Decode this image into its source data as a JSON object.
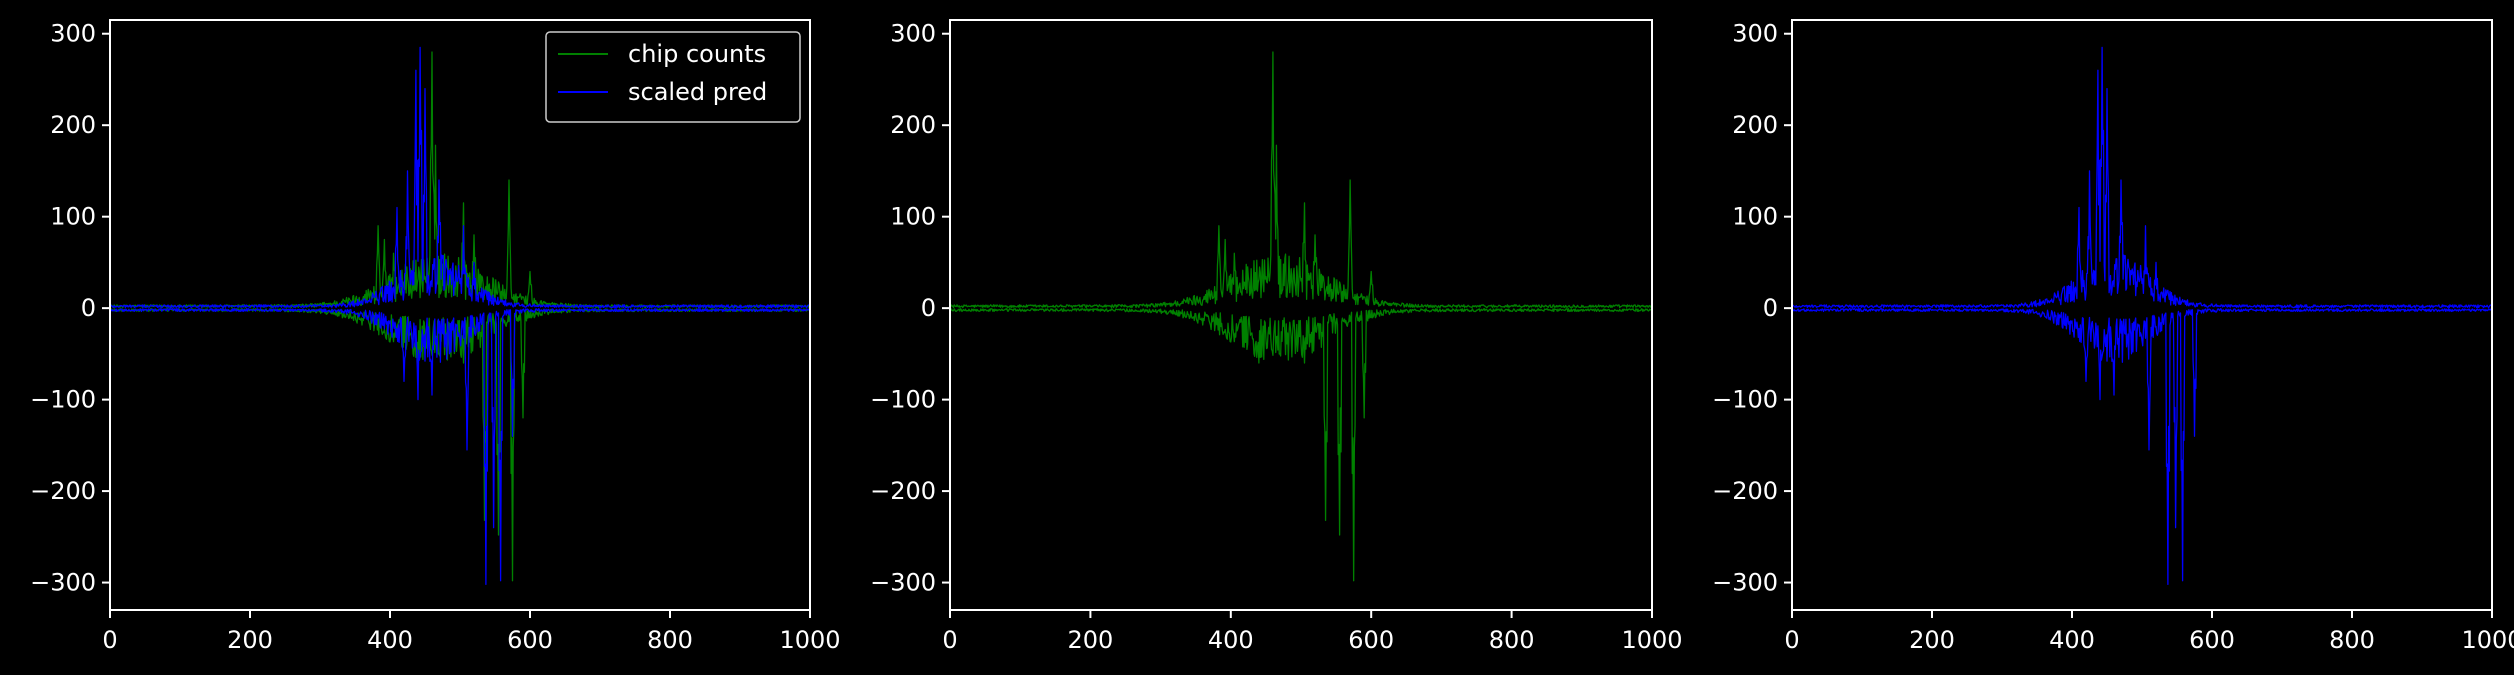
{
  "figure": {
    "background": "#000000",
    "foreground": "#ffffff"
  },
  "chart_data": [
    {
      "type": "line",
      "panel": 1,
      "xlim": [
        0,
        1000
      ],
      "ylim": [
        -330,
        315
      ],
      "x_ticks": [
        "0",
        "200",
        "400",
        "600",
        "800",
        "1000"
      ],
      "y_ticks": [
        "300",
        "200",
        "100",
        "0",
        "−100",
        "−200",
        "−300"
      ],
      "legend": {
        "position": "top-right",
        "entries": [
          {
            "label": "chip counts",
            "color": "#008000"
          },
          {
            "label": "scaled pred",
            "color": "#0000ff"
          }
        ]
      },
      "series": [
        {
          "name": "chip counts",
          "color": "#008000",
          "style": "signed-noise",
          "center": 470,
          "width": 95,
          "x": [
            0,
            1000
          ],
          "upper_peaks": [
            [
              383,
              90
            ],
            [
              392,
              75
            ],
            [
              405,
              60
            ],
            [
              460,
              280
            ],
            [
              465,
              178
            ],
            [
              505,
              115
            ],
            [
              520,
              80
            ],
            [
              570,
              140
            ],
            [
              600,
              40
            ]
          ],
          "lower_peaks": [
            [
              395,
              -30
            ],
            [
              440,
              -60
            ],
            [
              505,
              -60
            ],
            [
              535,
              -232
            ],
            [
              555,
              -248
            ],
            [
              575,
              -298
            ],
            [
              590,
              -120
            ]
          ]
        },
        {
          "name": "scaled pred",
          "color": "#0000ff",
          "style": "signed-noise",
          "center": 460,
          "width": 70,
          "x": [
            0,
            1000
          ],
          "upper_peaks": [
            [
              410,
              110
            ],
            [
              425,
              150
            ],
            [
              437,
              260
            ],
            [
              443,
              285
            ],
            [
              450,
              240
            ],
            [
              470,
              140
            ],
            [
              505,
              90
            ],
            [
              520,
              50
            ]
          ],
          "lower_peaks": [
            [
              420,
              -80
            ],
            [
              440,
              -100
            ],
            [
              460,
              -95
            ],
            [
              510,
              -155
            ],
            [
              537,
              -302
            ],
            [
              548,
              -240
            ],
            [
              558,
              -298
            ],
            [
              575,
              -140
            ]
          ]
        }
      ]
    },
    {
      "type": "line",
      "panel": 2,
      "xlim": [
        0,
        1000
      ],
      "ylim": [
        -330,
        315
      ],
      "x_ticks": [
        "0",
        "200",
        "400",
        "600",
        "800",
        "1000"
      ],
      "y_ticks": [
        "300",
        "200",
        "100",
        "0",
        "−100",
        "−200",
        "−300"
      ],
      "series": [
        {
          "name": "chip counts",
          "color": "#008000",
          "style": "signed-noise",
          "center": 470,
          "width": 95,
          "x": [
            0,
            1000
          ],
          "upper_peaks": [
            [
              383,
              90
            ],
            [
              392,
              75
            ],
            [
              405,
              60
            ],
            [
              460,
              280
            ],
            [
              465,
              178
            ],
            [
              505,
              115
            ],
            [
              520,
              80
            ],
            [
              570,
              140
            ],
            [
              600,
              40
            ]
          ],
          "lower_peaks": [
            [
              395,
              -30
            ],
            [
              440,
              -60
            ],
            [
              505,
              -60
            ],
            [
              535,
              -232
            ],
            [
              555,
              -248
            ],
            [
              575,
              -298
            ],
            [
              590,
              -120
            ]
          ]
        }
      ]
    },
    {
      "type": "line",
      "panel": 3,
      "xlim": [
        0,
        1000
      ],
      "ylim": [
        -330,
        315
      ],
      "x_ticks": [
        "0",
        "200",
        "400",
        "600",
        "800",
        "1000"
      ],
      "y_ticks": [
        "300",
        "200",
        "100",
        "0",
        "−100",
        "−200",
        "−300"
      ],
      "series": [
        {
          "name": "scaled pred",
          "color": "#0000ff",
          "style": "signed-noise",
          "center": 460,
          "width": 70,
          "x": [
            0,
            1000
          ],
          "upper_peaks": [
            [
              410,
              110
            ],
            [
              425,
              150
            ],
            [
              437,
              260
            ],
            [
              443,
              285
            ],
            [
              450,
              240
            ],
            [
              470,
              140
            ],
            [
              505,
              90
            ],
            [
              520,
              50
            ]
          ],
          "lower_peaks": [
            [
              420,
              -80
            ],
            [
              440,
              -100
            ],
            [
              460,
              -95
            ],
            [
              510,
              -155
            ],
            [
              537,
              -302
            ],
            [
              548,
              -240
            ],
            [
              558,
              -298
            ],
            [
              575,
              -140
            ]
          ]
        }
      ]
    }
  ]
}
